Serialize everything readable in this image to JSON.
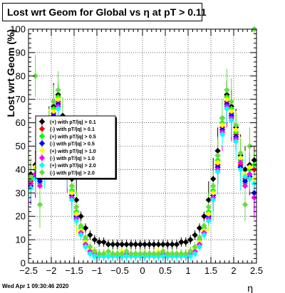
{
  "title": "Lost wrt Geom for Global vs  η at pT > 0.11",
  "datestamp": "Wed Apr  1 09:30:46 2020",
  "chart_data": {
    "type": "scatter",
    "xlabel": "η",
    "ylabel": "Lost wrt Geom (%)",
    "xlim": [
      -2.5,
      2.5
    ],
    "ylim": [
      0,
      100
    ],
    "x_ticks": [
      "−2.5",
      "−2",
      "−1.5",
      "−1",
      "−0.5",
      "0",
      "0.5",
      "1",
      "1.5",
      "2",
      "2.5"
    ],
    "y_ticks": [
      "0",
      "10",
      "20",
      "30",
      "40",
      "50",
      "60",
      "70",
      "80",
      "90",
      "100"
    ],
    "grid": true,
    "legend_position": "middle-left",
    "x": [
      -2.45,
      -2.35,
      -2.25,
      -2.15,
      -2.05,
      -1.95,
      -1.85,
      -1.75,
      -1.65,
      -1.55,
      -1.45,
      -1.35,
      -1.25,
      -1.15,
      -1.05,
      -0.95,
      -0.85,
      -0.75,
      -0.65,
      -0.55,
      -0.45,
      -0.35,
      -0.25,
      -0.15,
      -0.05,
      0.05,
      0.15,
      0.25,
      0.35,
      0.45,
      0.55,
      0.65,
      0.75,
      0.85,
      0.95,
      1.05,
      1.15,
      1.25,
      1.35,
      1.45,
      1.55,
      1.65,
      1.75,
      1.85,
      1.95,
      2.05,
      2.15,
      2.25,
      2.35,
      2.45
    ],
    "series": [
      {
        "name": "(+) with pT/|q| > 0.1",
        "color": "#000000",
        "values": [
          38,
          42,
          40,
          46,
          58,
          67,
          72,
          63,
          48,
          36,
          27,
          20,
          15,
          12,
          10,
          9,
          9,
          8,
          8,
          8,
          8,
          8,
          8,
          8,
          8,
          8,
          8,
          8,
          8,
          8,
          8,
          8,
          8,
          9,
          9,
          10,
          12,
          15,
          20,
          27,
          36,
          48,
          62,
          72,
          67,
          58,
          46,
          40,
          42,
          44
        ]
      },
      {
        "name": "(-) with pT/|q| > 0.1",
        "color": "#ff0000",
        "values": [
          35,
          38,
          36,
          42,
          55,
          64,
          69,
          58,
          42,
          30,
          21,
          14,
          9,
          6,
          5,
          4,
          4,
          4,
          4,
          4,
          4,
          4,
          4,
          4,
          4,
          4,
          4,
          4,
          4,
          4,
          4,
          4,
          4,
          4,
          4,
          5,
          6,
          9,
          14,
          21,
          30,
          42,
          58,
          69,
          64,
          55,
          42,
          36,
          38,
          40
        ]
      },
      {
        "name": "(+) with pT/|q| > 0.5",
        "color": "#00ff00",
        "values": [
          36,
          40,
          34,
          44,
          56,
          66,
          71,
          60,
          44,
          31,
          22,
          15,
          10,
          6,
          5,
          4,
          4,
          4,
          4,
          4,
          4,
          4,
          3,
          4,
          4,
          4,
          4,
          3,
          4,
          4,
          4,
          4,
          4,
          4,
          4,
          5,
          6,
          10,
          15,
          22,
          31,
          44,
          60,
          71,
          66,
          56,
          44,
          34,
          40,
          42
        ]
      },
      {
        "name": "(-) with pT/|q| > 0.5",
        "color": "#0000ff",
        "values": [
          33,
          37,
          35,
          41,
          54,
          63,
          68,
          57,
          41,
          29,
          20,
          13,
          8,
          5,
          4,
          3,
          3,
          3,
          3,
          3,
          3,
          3,
          3,
          3,
          3,
          3,
          3,
          3,
          3,
          3,
          3,
          3,
          3,
          3,
          3,
          4,
          5,
          8,
          13,
          20,
          29,
          41,
          57,
          68,
          63,
          54,
          41,
          35,
          37,
          30
        ]
      },
      {
        "name": "(+) with pT/|q| > 1.0",
        "color": "#ffff00",
        "values": [
          37,
          41,
          38,
          45,
          57,
          65,
          70,
          59,
          43,
          30,
          21,
          14,
          9,
          6,
          5,
          4,
          4,
          4,
          4,
          4,
          5,
          4,
          4,
          4,
          4,
          4,
          4,
          4,
          5,
          4,
          4,
          4,
          4,
          4,
          4,
          5,
          6,
          9,
          14,
          21,
          30,
          43,
          59,
          70,
          65,
          57,
          45,
          38,
          41,
          36
        ]
      },
      {
        "name": "(-) with pT/|q| > 1.0",
        "color": "#ff00ff",
        "values": [
          34,
          38,
          33,
          43,
          53,
          62,
          67,
          56,
          40,
          28,
          19,
          13,
          8,
          5,
          4,
          3,
          3,
          3,
          3,
          3,
          3,
          4,
          3,
          3,
          3,
          3,
          3,
          3,
          3,
          4,
          3,
          3,
          3,
          3,
          3,
          4,
          5,
          8,
          13,
          19,
          28,
          40,
          56,
          67,
          62,
          53,
          43,
          33,
          38,
          28
        ]
      },
      {
        "name": "(+) with pT/|q| > 2.0",
        "color": "#00ffff",
        "values": [
          32,
          36,
          37,
          40,
          52,
          61,
          66,
          55,
          39,
          27,
          18,
          12,
          7,
          4,
          3,
          3,
          3,
          3,
          3,
          3,
          3,
          3,
          3,
          3,
          3,
          3,
          3,
          3,
          3,
          3,
          3,
          3,
          3,
          3,
          3,
          3,
          4,
          7,
          12,
          18,
          27,
          39,
          55,
          66,
          61,
          52,
          40,
          37,
          36,
          34
        ]
      },
      {
        "name": "(-) with pT/|q| > 2.0",
        "color": "#66dd44",
        "values": [
          37,
          80,
          25,
          47,
          59,
          69,
          74,
          62,
          46,
          33,
          24,
          16,
          11,
          7,
          5,
          4,
          4,
          5,
          4,
          4,
          4,
          5,
          4,
          4,
          4,
          4,
          4,
          4,
          4,
          5,
          4,
          4,
          4,
          4,
          4,
          5,
          7,
          11,
          16,
          24,
          33,
          46,
          62,
          74,
          69,
          59,
          47,
          25,
          50,
          100
        ]
      }
    ]
  }
}
